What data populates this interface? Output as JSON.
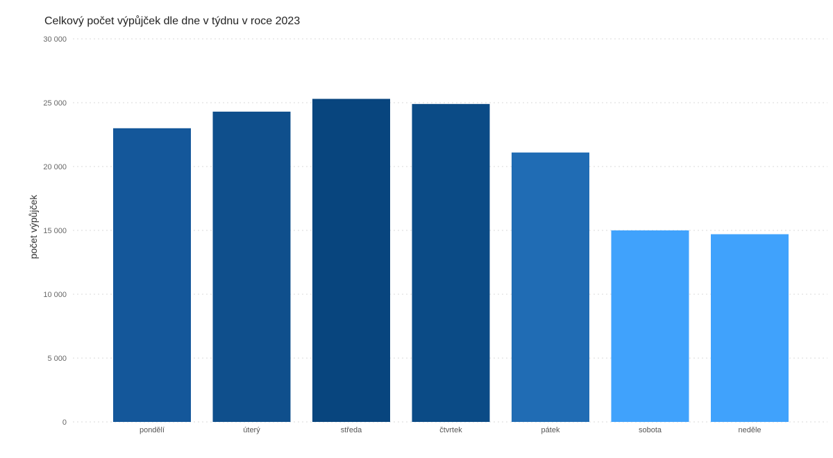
{
  "chart_data": {
    "type": "bar",
    "title": "Celkový počet výpůjček dle dne v týdnu v roce 2023",
    "xlabel": "",
    "ylabel": "počet výpůjček",
    "categories": [
      "pondělí",
      "úterý",
      "středa",
      "čtvrtek",
      "pátek",
      "sobota",
      "neděle"
    ],
    "values": [
      23000,
      24300,
      25300,
      24900,
      21100,
      15000,
      14700
    ],
    "colors": [
      "#14579a",
      "#0f4f8c",
      "#08457e",
      "#0b4b86",
      "#206cb4",
      "#40a2fc",
      "#40a2fc"
    ],
    "ylim": [
      0,
      30000
    ],
    "yticks": [
      0,
      5000,
      10000,
      15000,
      20000,
      25000,
      30000
    ],
    "ytick_labels": [
      "0",
      "5 000",
      "10 000",
      "15 000",
      "20 000",
      "25 000",
      "30 000"
    ],
    "grid": true,
    "grid_color": "#d9d9d9",
    "legend": "none"
  }
}
